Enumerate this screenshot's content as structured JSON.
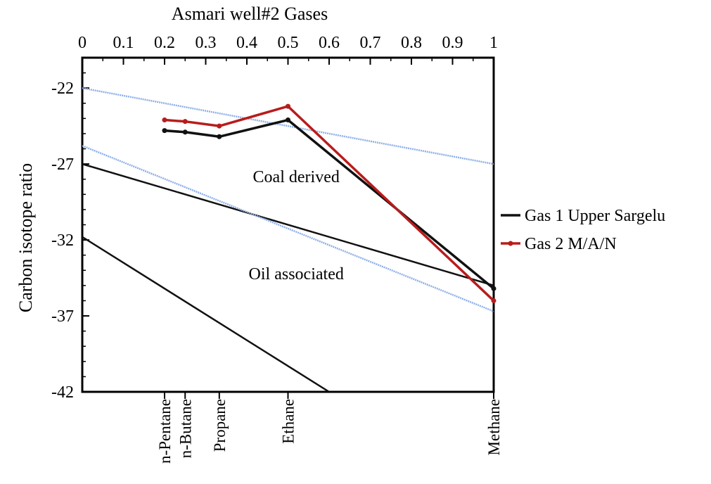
{
  "chart_data": {
    "type": "line",
    "title": "Asmari well#2  Gases",
    "ylabel": "Carbon isotope ratio",
    "xlim": [
      0,
      1
    ],
    "ylim": [
      -42,
      -20
    ],
    "y_inverted": true,
    "x_ticks": [
      "0",
      "0.1",
      "0.2",
      "0.3",
      "0.4",
      "0.5",
      "0.6",
      "0.7",
      "0.8",
      "0.9",
      "1"
    ],
    "y_ticks": [
      "-22",
      "-27",
      "-32",
      "-37",
      "-42"
    ],
    "x_tick_values": [
      0,
      0.1,
      0.2,
      0.3,
      0.4,
      0.5,
      0.6,
      0.7,
      0.8,
      0.9,
      1
    ],
    "y_tick_values": [
      -22,
      -27,
      -32,
      -37,
      -42
    ],
    "categories": [
      {
        "label": "n-Pentane",
        "x": 0.2
      },
      {
        "label": "n-Butane",
        "x": 0.25
      },
      {
        "label": "Propane",
        "x": 0.333
      },
      {
        "label": "Ethane",
        "x": 0.5
      },
      {
        "label": "Methane",
        "x": 1.0
      }
    ],
    "series": [
      {
        "name": "Gas 1 Upper Sargelu",
        "color": "#111111",
        "points": [
          [
            0.2,
            -24.8
          ],
          [
            0.25,
            -24.9
          ],
          [
            0.333,
            -25.2
          ],
          [
            0.5,
            -24.1
          ],
          [
            1.0,
            -35.2
          ]
        ]
      },
      {
        "name": "Gas 2 M/A/N",
        "color": "#b81c1c",
        "points": [
          [
            0.2,
            -24.1
          ],
          [
            0.25,
            -24.2
          ],
          [
            0.333,
            -24.5
          ],
          [
            0.5,
            -23.2
          ],
          [
            1.0,
            -36.0
          ]
        ]
      }
    ],
    "reference_lines": [
      {
        "color": "#111111",
        "style": "solid",
        "from": [
          0,
          -27.0
        ],
        "to": [
          1,
          -35.0
        ]
      },
      {
        "color": "#111111",
        "style": "solid",
        "from": [
          0,
          -31.8
        ],
        "to": [
          0.6,
          -42.0
        ]
      },
      {
        "color": "#8fb0e8",
        "style": "dotted",
        "from": [
          0,
          -22.0
        ],
        "to": [
          1,
          -27.0
        ]
      },
      {
        "color": "#8fb0e8",
        "style": "dotted",
        "from": [
          0,
          -25.8
        ],
        "to": [
          1,
          -36.7
        ]
      }
    ],
    "annotations": [
      {
        "text": "Coal derived",
        "x": 0.52,
        "y": -28.2
      },
      {
        "text": "Oil associated",
        "x": 0.52,
        "y": -34.6
      }
    ],
    "legend": "right",
    "grid": false
  }
}
